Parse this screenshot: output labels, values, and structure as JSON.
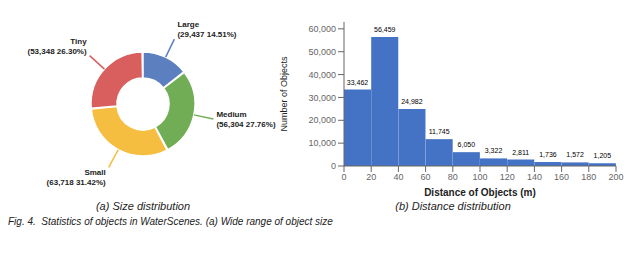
{
  "chart_data": [
    {
      "type": "pie",
      "categories": [
        "Large",
        "Medium",
        "Small",
        "Tiny"
      ],
      "values": [
        29437,
        56304,
        63718,
        53348
      ],
      "value_labels": [
        "(29,437 14.51%)",
        "(56,304 27.76%)",
        "(63,718 31.42%)",
        "(53,348 26.30%)"
      ],
      "colors": [
        "#5B7FBF",
        "#71AD55",
        "#F5BE41",
        "#D95F5F"
      ],
      "data_labels": true,
      "subtitle": "(a) Size distribution",
      "annotations": [
        "Fig. 4.  Statistics of objects in WaterScenes. (a) Wide range of object size"
      ]
    },
    {
      "type": "bar",
      "bins": [
        0,
        20,
        40,
        60,
        80,
        100,
        120,
        140,
        160,
        180,
        200
      ],
      "values": [
        33462,
        56459,
        24982,
        11745,
        6050,
        3322,
        2811,
        1736,
        1572,
        1205
      ],
      "value_labels": [
        "33,462",
        "56,459",
        "24,982",
        "11,745",
        "6,050",
        "3,322",
        "2,811",
        "1,736",
        "1,572",
        "1,205"
      ],
      "color": "#4472C4",
      "xlabel": "Distance of Objects (m)",
      "ylabel": "Number of Objects",
      "xlim": [
        0,
        200
      ],
      "xticks": [
        0,
        20,
        40,
        60,
        80,
        100,
        120,
        140,
        160,
        180,
        200
      ],
      "ylim": [
        0,
        63000
      ],
      "yticks": [
        0,
        {
          "value": 10000,
          "label": "10,000"
        },
        {
          "value": 20000,
          "label": "20,000"
        },
        {
          "value": 30000,
          "label": "30,000"
        },
        {
          "value": 40000,
          "label": "40,000"
        },
        {
          "value": 50000,
          "label": "50,000"
        },
        {
          "value": 60000,
          "label": "60,000"
        }
      ],
      "data_labels": true,
      "subtitle": "(b) Distance distribution"
    }
  ]
}
